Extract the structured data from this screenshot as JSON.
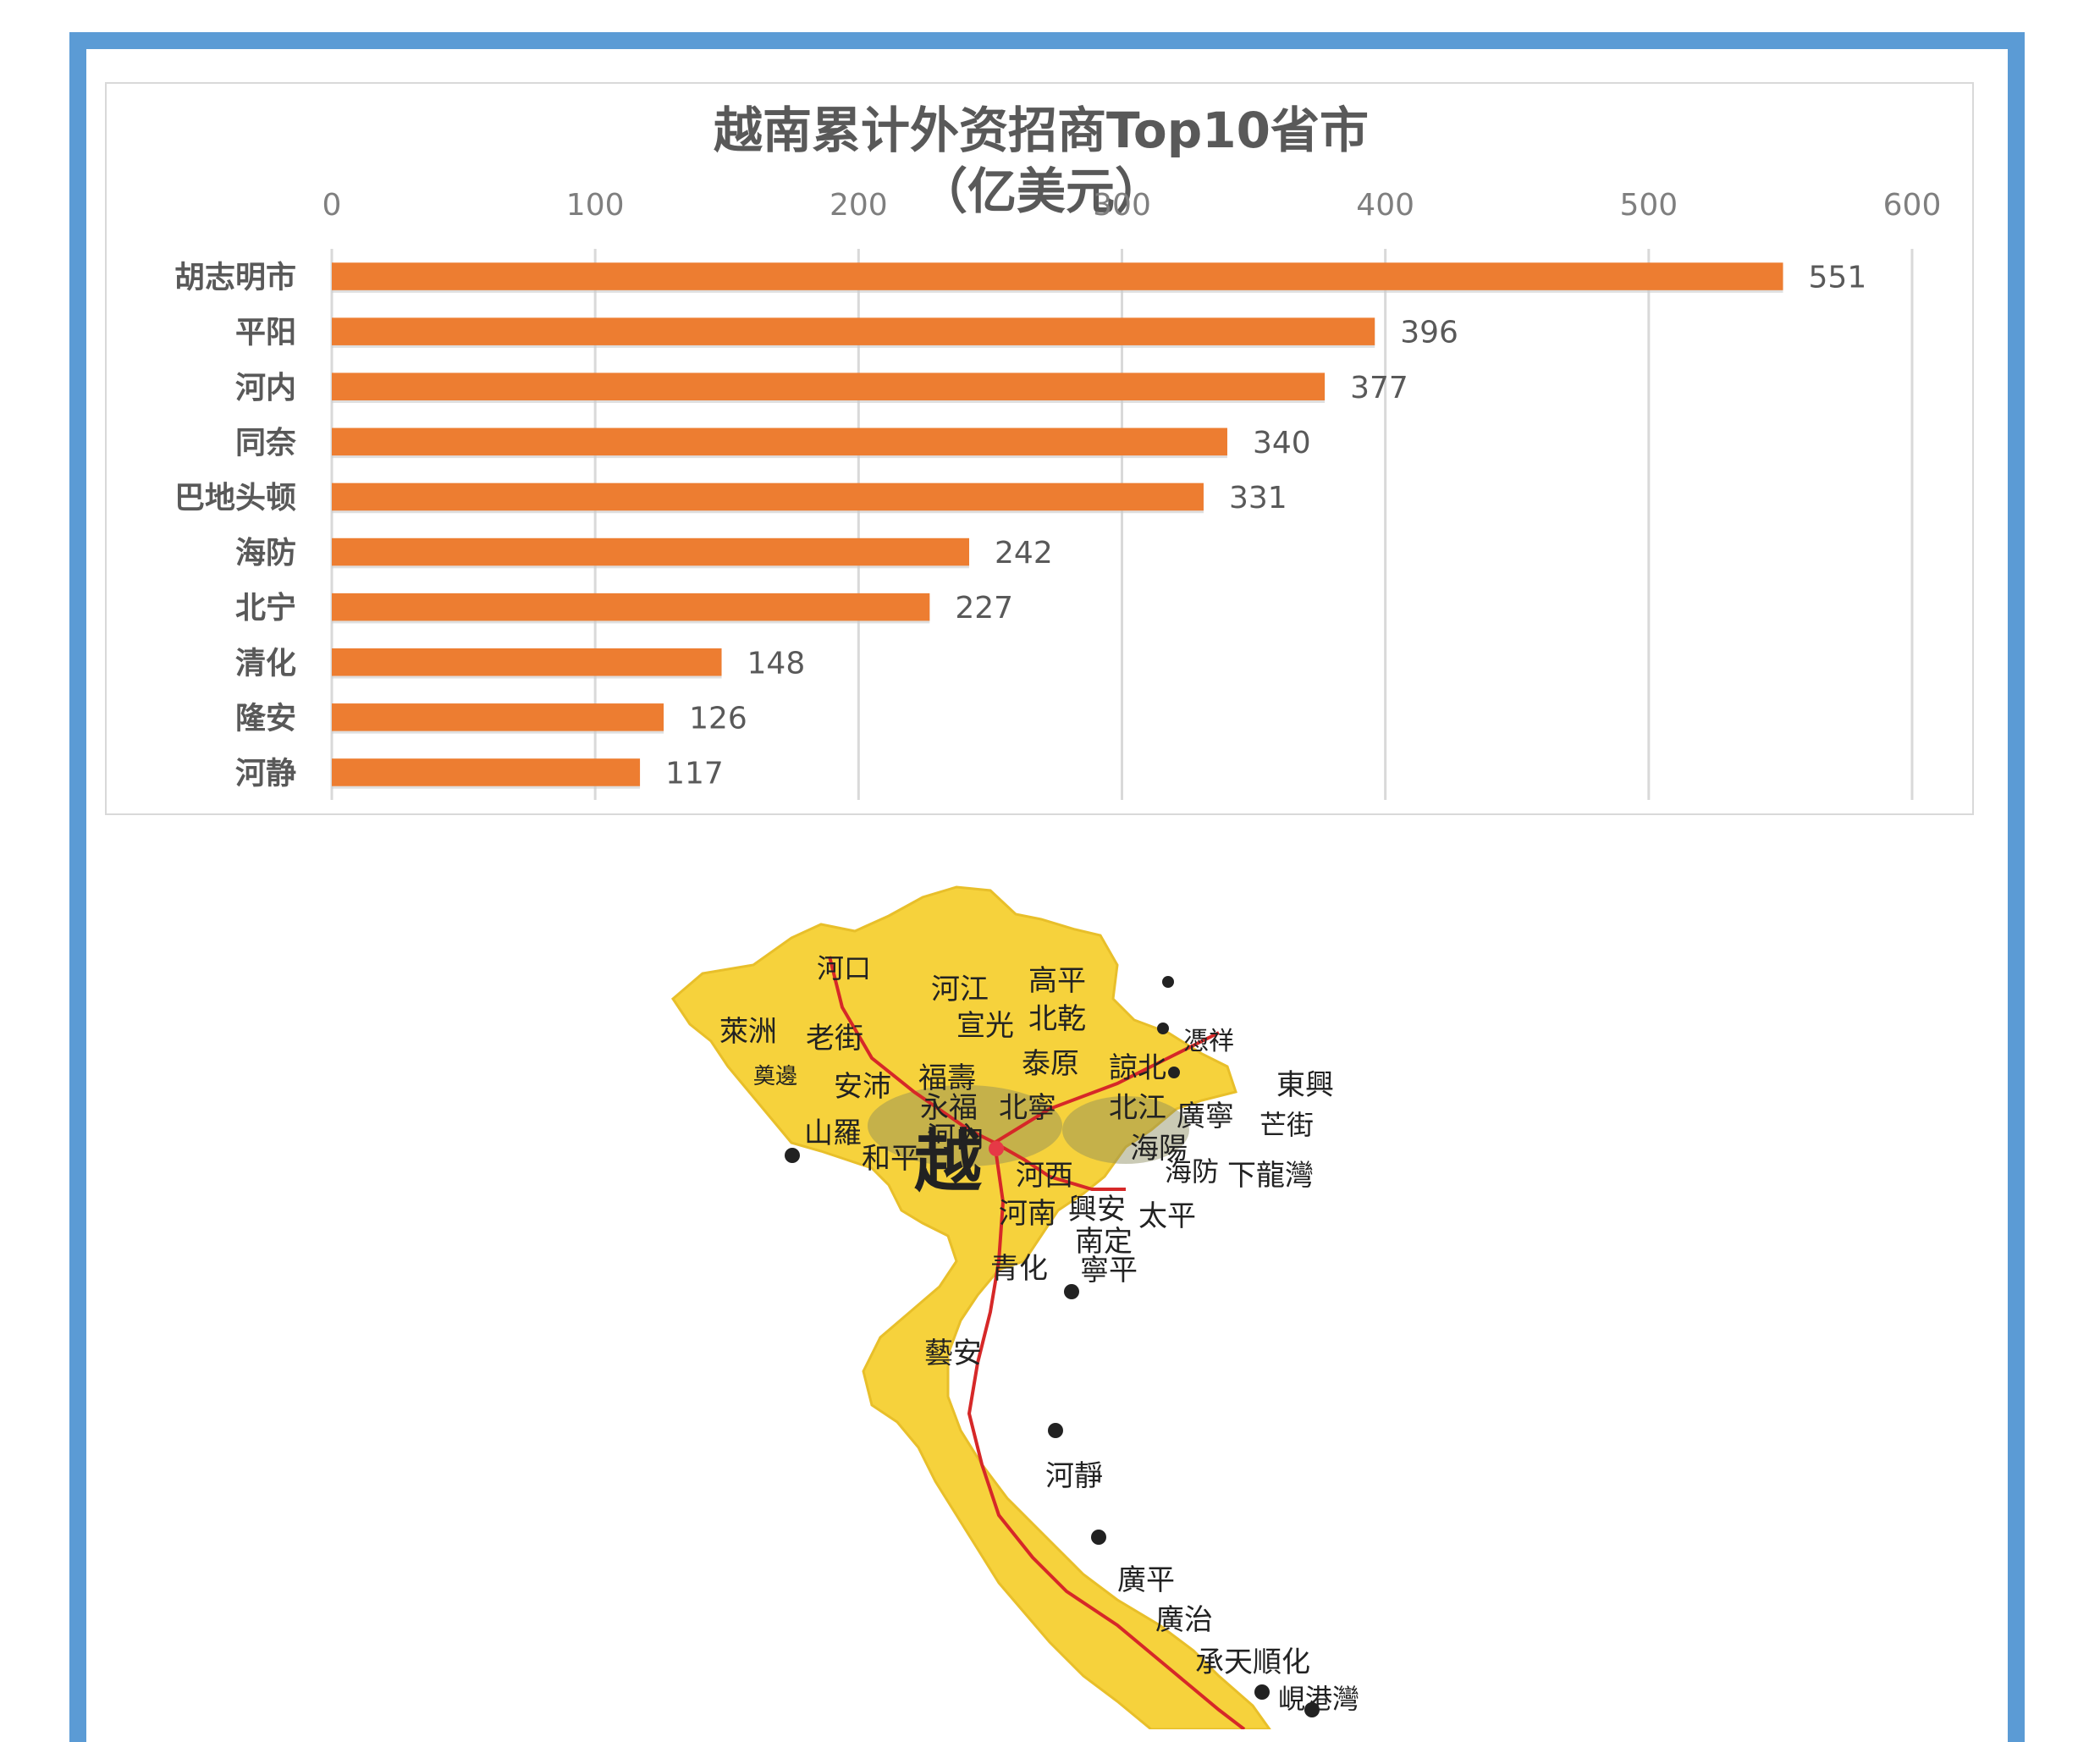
{
  "chart_data": {
    "type": "bar",
    "orientation": "horizontal",
    "title": "越南累计外资招商Top10省市",
    "subtitle": "（亿美元）",
    "categories": [
      "胡志明市",
      "平阳",
      "河内",
      "同奈",
      "巴地头顿",
      "海防",
      "北宁",
      "清化",
      "隆安",
      "河静"
    ],
    "values": [
      551,
      396,
      377,
      340,
      331,
      242,
      227,
      148,
      126,
      117
    ],
    "xlim": [
      0,
      600
    ],
    "xticks": [
      0,
      100,
      200,
      300,
      400,
      500,
      600
    ],
    "axis_position": "top",
    "grid": true,
    "colors": {
      "bar": "#ed7d31",
      "grid": "#d9d9d9",
      "frame": "#5b9bd5",
      "map_fill": "#f6d23c",
      "rail": "#d62828"
    }
  },
  "map": {
    "labels_black": [
      "高平",
      "河江",
      "宣光",
      "北乾",
      "萊洲",
      "老街",
      "奠邊",
      "安沛",
      "福壽",
      "泰原",
      "諒北",
      "永福",
      "北寧",
      "北江",
      "廣寧",
      "山羅",
      "和平",
      "越",
      "海陽",
      "河西",
      "河南",
      "興安",
      "太平",
      "南定",
      "寧平",
      "青化",
      "藝安",
      "河靜",
      "廣平",
      "廣治",
      "承天順化"
    ],
    "labels_blue": [
      "河口",
      "憑祥",
      "東興",
      "芒街",
      "下龍灣"
    ],
    "labels_red": [
      "河內",
      "海防",
      "峴港灣"
    ]
  }
}
